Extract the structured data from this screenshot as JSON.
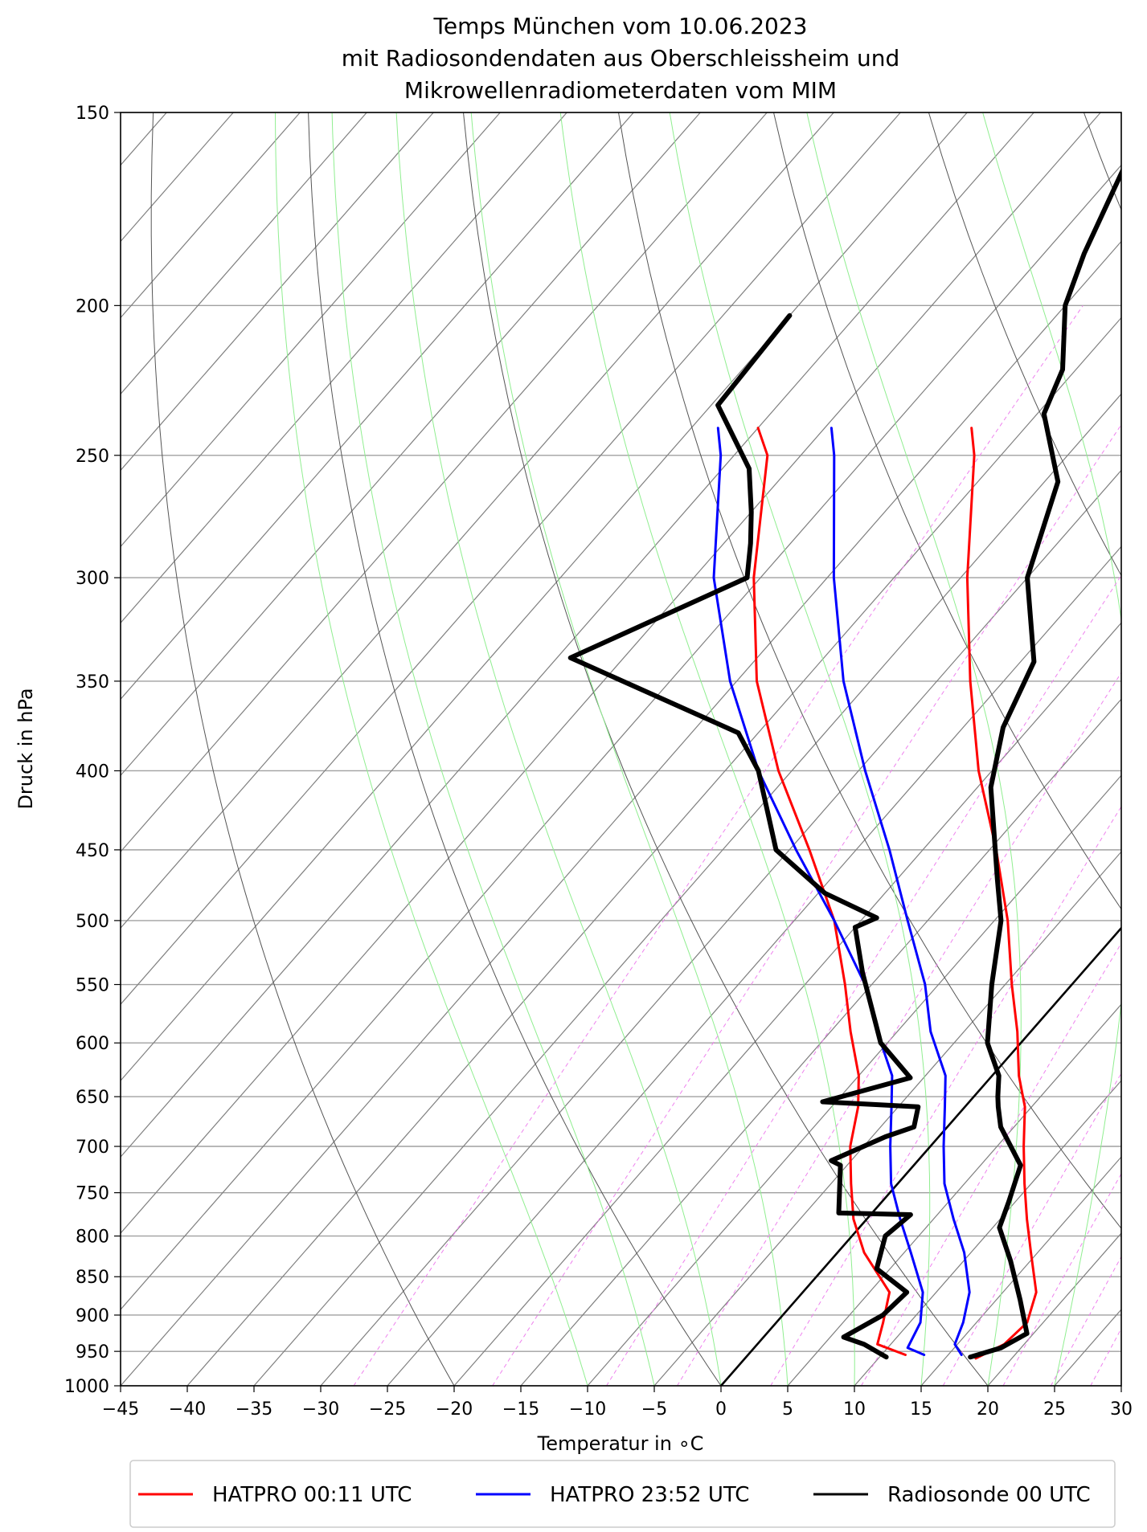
{
  "colors": {
    "hatpro_0011": "#ff0000",
    "hatpro_2352": "#0000ff",
    "radiosonde": "#000000",
    "isotherms": "#7f7f7f",
    "isobars": "#a0a0a0",
    "dry_adiabats": "#555555",
    "moist_adiabats": "#90ee90",
    "mixing_ratio": "#ee82ee"
  },
  "chart_data": {
    "type": "line",
    "chart_kind": "skew-T log-p diagram",
    "title": "Temps München vom 10.06.2023",
    "title_lines": [
      "Temps München vom 10.06.2023",
      "mit Radiosondendaten aus Oberschleissheim und",
      "Mikrowellenradiometerdaten vom MIM"
    ],
    "xlabel": "Temperatur in ∘C",
    "ylabel": "Druck in hPa",
    "xlim": [
      -45,
      30
    ],
    "ylim": [
      1000,
      150
    ],
    "y_scale": "log",
    "x_ticks": [
      "−45",
      "−40",
      "−35",
      "−30",
      "−25",
      "−20",
      "−15",
      "−10",
      "−5",
      "0",
      "5",
      "10",
      "15",
      "20",
      "25",
      "30"
    ],
    "y_ticks": [
      "150",
      "200",
      "250",
      "300",
      "350",
      "400",
      "450",
      "500",
      "550",
      "600",
      "650",
      "700",
      "750",
      "800",
      "850",
      "900",
      "950",
      "1000"
    ],
    "grid": true,
    "legend_placement": "bottom-center",
    "background_lines": [
      "isobars",
      "skewed isotherms",
      "dry adiabats",
      "moist adiabats",
      "mixing ratio lines",
      "0 °C isotherm"
    ],
    "series": [
      {
        "name": "HATPRO 00:11 UTC",
        "color": "#ff0000",
        "profiles": [
          {
            "kind": "temperature",
            "points": [
              [
                17.3,
                960
              ],
              [
                18.5,
                940
              ],
              [
                18.8,
                910
              ],
              [
                17.5,
                870
              ],
              [
                14.5,
                820
              ],
              [
                12.0,
                780
              ],
              [
                9.5,
                740
              ],
              [
                7.0,
                700
              ],
              [
                4.5,
                660
              ],
              [
                2.0,
                630
              ],
              [
                -1.0,
                590
              ],
              [
                -4.5,
                550
              ],
              [
                -9.0,
                500
              ],
              [
                -14.5,
                450
              ],
              [
                -21.0,
                400
              ],
              [
                -27.5,
                350
              ],
              [
                -34.5,
                300
              ],
              [
                -42.0,
                250
              ],
              [
                -44.0,
                240
              ]
            ]
          },
          {
            "kind": "dewpoint",
            "points": [
              [
                11.8,
                955
              ],
              [
                9.0,
                940
              ],
              [
                8.0,
                910
              ],
              [
                6.5,
                870
              ],
              [
                2.0,
                820
              ],
              [
                -1.0,
                780
              ],
              [
                -3.5,
                740
              ],
              [
                -6.0,
                700
              ],
              [
                -8.0,
                660
              ],
              [
                -10.0,
                630
              ],
              [
                -13.5,
                590
              ],
              [
                -17.0,
                550
              ],
              [
                -22.0,
                500
              ],
              [
                -28.5,
                450
              ],
              [
                -36.0,
                400
              ],
              [
                -43.5,
                350
              ],
              [
                -50.5,
                300
              ],
              [
                -57.5,
                250
              ],
              [
                -60.0,
                240
              ]
            ]
          }
        ]
      },
      {
        "name": "HATPRO 23:52 UTC",
        "color": "#0000ff",
        "profiles": [
          {
            "kind": "temperature",
            "points": [
              [
                16.0,
                955
              ],
              [
                14.8,
                940
              ],
              [
                14.0,
                910
              ],
              [
                12.5,
                870
              ],
              [
                9.5,
                820
              ],
              [
                6.5,
                780
              ],
              [
                3.5,
                740
              ],
              [
                1.0,
                700
              ],
              [
                -1.5,
                660
              ],
              [
                -3.5,
                630
              ],
              [
                -7.5,
                590
              ],
              [
                -11.0,
                550
              ],
              [
                -16.5,
                500
              ],
              [
                -22.5,
                450
              ],
              [
                -29.5,
                400
              ],
              [
                -37.0,
                350
              ],
              [
                -44.5,
                300
              ],
              [
                -52.5,
                250
              ],
              [
                -54.5,
                240
              ]
            ]
          },
          {
            "kind": "dewpoint",
            "points": [
              [
                13.2,
                955
              ],
              [
                11.5,
                945
              ],
              [
                10.8,
                910
              ],
              [
                9.0,
                870
              ],
              [
                5.5,
                820
              ],
              [
                2.5,
                780
              ],
              [
                -0.5,
                740
              ],
              [
                -3.0,
                700
              ],
              [
                -5.5,
                660
              ],
              [
                -7.5,
                630
              ],
              [
                -11.5,
                590
              ],
              [
                -15.5,
                550
              ],
              [
                -22.0,
                500
              ],
              [
                -29.5,
                450
              ],
              [
                -37.5,
                400
              ],
              [
                -45.5,
                350
              ],
              [
                -53.5,
                300
              ],
              [
                -61.0,
                250
              ],
              [
                -63.0,
                240
              ]
            ]
          }
        ]
      },
      {
        "name": "Radiosonde 00 UTC",
        "color": "#000000",
        "profiles": [
          {
            "kind": "temperature",
            "points": [
              [
                16.8,
                958
              ],
              [
                18.5,
                945
              ],
              [
                19.5,
                925
              ],
              [
                16.8,
                880
              ],
              [
                13.5,
                830
              ],
              [
                10.5,
                790
              ],
              [
                9.5,
                760
              ],
              [
                8.0,
                720
              ],
              [
                4.0,
                680
              ],
              [
                2.5,
                660
              ],
              [
                1.8,
                650
              ],
              [
                0.5,
                630
              ],
              [
                -2.5,
                600
              ],
              [
                -6.0,
                550
              ],
              [
                -9.5,
                500
              ],
              [
                -12.5,
                470
              ],
              [
                -19.0,
                410
              ],
              [
                -22.0,
                375
              ],
              [
                -24.0,
                340
              ],
              [
                -30.0,
                300
              ],
              [
                -34.0,
                260
              ],
              [
                -39.5,
                235
              ],
              [
                -41.0,
                220
              ],
              [
                -45.0,
                200
              ],
              [
                -47.0,
                185
              ],
              [
                -50.0,
                160
              ],
              [
                -51.5,
                150
              ]
            ]
          },
          {
            "kind": "dewpoint",
            "points": [
              [
                10.5,
                958
              ],
              [
                8.0,
                940
              ],
              [
                6.0,
                930
              ],
              [
                7.5,
                900
              ],
              [
                7.8,
                870
              ],
              [
                4.0,
                840
              ],
              [
                2.5,
                800
              ],
              [
                3.0,
                775
              ],
              [
                -2.5,
                773
              ],
              [
                -5.5,
                720
              ],
              [
                -6.5,
                715
              ],
              [
                -4.0,
                690
              ],
              [
                -2.5,
                680
              ],
              [
                -3.5,
                660
              ],
              [
                -11.0,
                655
              ],
              [
                -6.0,
                632
              ],
              [
                -10.5,
                600
              ],
              [
                -16.5,
                540
              ],
              [
                -20.0,
                505
              ],
              [
                -19.0,
                498
              ],
              [
                -24.5,
                480
              ],
              [
                -31.0,
                450
              ],
              [
                -37.5,
                400
              ],
              [
                -41.5,
                378
              ],
              [
                -59.0,
                338
              ],
              [
                -51.0,
                300
              ],
              [
                -53.0,
                285
              ],
              [
                -55.0,
                272
              ],
              [
                -58.0,
                255
              ],
              [
                -64.5,
                232
              ],
              [
                -65.0,
                203
              ]
            ]
          }
        ]
      }
    ]
  }
}
